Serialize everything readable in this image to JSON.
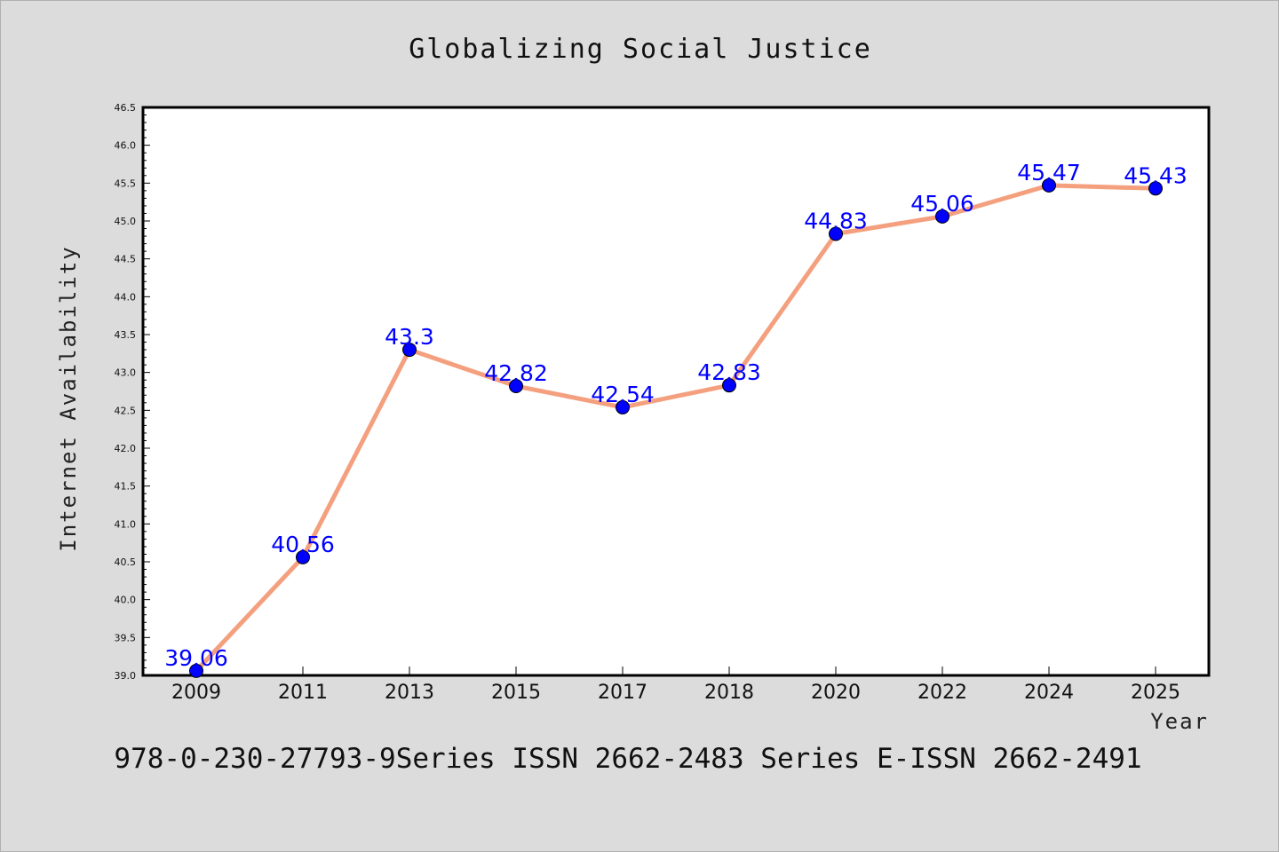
{
  "title": "Globalizing Social Justice",
  "footer": "978-0-230-27793-9Series ISSN 2662-2483 Series E-ISSN 2662-2491",
  "colors": {
    "background": "#dcdcdc",
    "plot_background": "#ffffff",
    "line": "#f4a07e",
    "marker": "#0000ff",
    "data_label": "#0000ff"
  },
  "chart_data": {
    "type": "line",
    "title": "Globalizing Social Justice",
    "xlabel": "Year",
    "ylabel": "Internet Availability",
    "categories": [
      "2009",
      "2011",
      "2013",
      "2015",
      "2017",
      "2018",
      "2020",
      "2022",
      "2024",
      "2025"
    ],
    "series": [
      {
        "values": [
          39.06,
          40.56,
          43.3,
          42.82,
          42.54,
          42.83,
          44.83,
          45.06,
          45.47,
          45.43
        ]
      }
    ],
    "data_labels": [
      "39.06",
      "40.56",
      "43.3",
      "42.82",
      "42.54",
      "42.83",
      "44.83",
      "45.06",
      "45.47",
      "45.43"
    ],
    "ylim": [
      39.0,
      46.5
    ],
    "yticks": [
      "39.0",
      "39.5",
      "40.0",
      "40.5",
      "41.0",
      "41.5",
      "42.0",
      "42.5",
      "43.0",
      "43.5",
      "44.0",
      "44.5",
      "45.0",
      "45.5",
      "46.0",
      "46.5"
    ],
    "grid": false,
    "legend": "none"
  }
}
